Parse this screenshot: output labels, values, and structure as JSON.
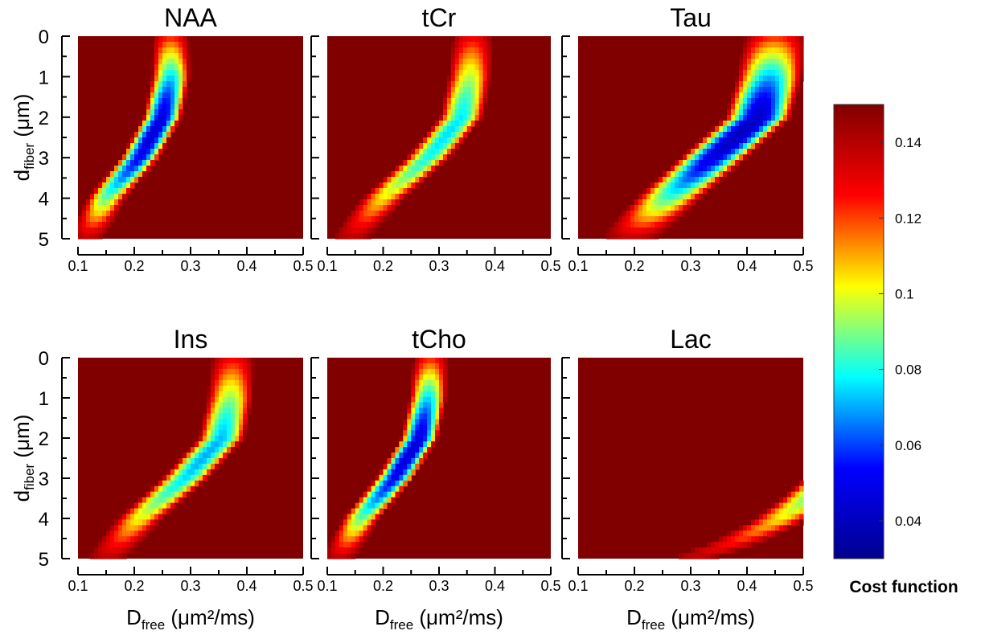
{
  "chart_data": [
    {
      "type": "heatmap",
      "title": "NAA",
      "xlabel": "",
      "ylabel": "dfiber (μm)",
      "x_ticks": [
        "0.1",
        "0.2",
        "0.3",
        "0.4",
        "0.5"
      ],
      "y_ticks": [
        "0",
        "1",
        "2",
        "3",
        "4",
        "5"
      ],
      "xlim": [
        0.1,
        0.5
      ],
      "ylim": [
        0,
        5
      ],
      "valley_path": [
        [
          0.265,
          0
        ],
        [
          0.265,
          1
        ],
        [
          0.25,
          2
        ],
        [
          0.21,
          3
        ],
        [
          0.15,
          4
        ],
        [
          0.115,
          5
        ]
      ],
      "valley_min": 0.045,
      "valley_width": 0.035
    },
    {
      "type": "heatmap",
      "title": "tCr",
      "xlabel": "",
      "ylabel": "",
      "x_ticks": [
        "0.1",
        "0.2",
        "0.3",
        "0.4",
        "0.5"
      ],
      "y_ticks": [],
      "xlim": [
        0.1,
        0.5
      ],
      "ylim": [
        0,
        5
      ],
      "valley_path": [
        [
          0.36,
          0
        ],
        [
          0.355,
          1
        ],
        [
          0.34,
          2
        ],
        [
          0.28,
          3
        ],
        [
          0.2,
          4
        ],
        [
          0.14,
          5
        ]
      ],
      "valley_min": 0.075,
      "valley_width": 0.04
    },
    {
      "type": "heatmap",
      "title": "Tau",
      "xlabel": "",
      "ylabel": "",
      "x_ticks": [
        "0.1",
        "0.2",
        "0.3",
        "0.4",
        "0.5"
      ],
      "y_ticks": [],
      "xlim": [
        0.1,
        0.5
      ],
      "ylim": [
        0,
        5
      ],
      "valley_path": [
        [
          0.45,
          0
        ],
        [
          0.44,
          1
        ],
        [
          0.42,
          2
        ],
        [
          0.34,
          3
        ],
        [
          0.26,
          4
        ],
        [
          0.19,
          5
        ]
      ],
      "valley_min": 0.04,
      "valley_width": 0.06
    },
    {
      "type": "heatmap",
      "title": "Ins",
      "xlabel": "Dfree (μm²/ms)",
      "ylabel": "dfiber (μm)",
      "x_ticks": [
        "0.1",
        "0.2",
        "0.3",
        "0.4",
        "0.5"
      ],
      "y_ticks": [
        "0",
        "1",
        "2",
        "3",
        "4",
        "5"
      ],
      "xlim": [
        0.1,
        0.5
      ],
      "ylim": [
        0,
        5
      ],
      "valley_path": [
        [
          0.375,
          0
        ],
        [
          0.37,
          1
        ],
        [
          0.355,
          2
        ],
        [
          0.29,
          3
        ],
        [
          0.21,
          4
        ],
        [
          0.15,
          5
        ]
      ],
      "valley_min": 0.07,
      "valley_width": 0.042
    },
    {
      "type": "heatmap",
      "title": "tCho",
      "xlabel": "Dfree (μm²/ms)",
      "ylabel": "",
      "x_ticks": [
        "0.1",
        "0.2",
        "0.3",
        "0.4",
        "0.5"
      ],
      "y_ticks": [],
      "xlim": [
        0.1,
        0.5
      ],
      "ylim": [
        0,
        5
      ],
      "valley_path": [
        [
          0.285,
          0
        ],
        [
          0.28,
          1
        ],
        [
          0.265,
          2
        ],
        [
          0.22,
          3
        ],
        [
          0.16,
          4
        ],
        [
          0.12,
          5
        ]
      ],
      "valley_min": 0.045,
      "valley_width": 0.034
    },
    {
      "type": "heatmap",
      "title": "Lac",
      "xlabel": "Dfree (μm²/ms)",
      "ylabel": "",
      "x_ticks": [
        "0.1",
        "0.2",
        "0.3",
        "0.4",
        "0.5"
      ],
      "y_ticks": [],
      "xlim": [
        0.1,
        0.5
      ],
      "ylim": [
        0,
        5
      ],
      "valley_path": [
        [
          0.55,
          3.0
        ],
        [
          0.5,
          3.6
        ],
        [
          0.45,
          4.1
        ],
        [
          0.38,
          4.6
        ],
        [
          0.3,
          5.0
        ]
      ],
      "valley_min": 0.075,
      "valley_width": 0.05
    }
  ],
  "colorbar": {
    "label": "Cost function",
    "ticks": [
      "0.04",
      "0.06",
      "0.08",
      "0.1",
      "0.12",
      "0.14"
    ],
    "range": [
      0.03,
      0.15
    ],
    "colormap": [
      "#00008f",
      "#0000ff",
      "#00ffff",
      "#ffff00",
      "#ff0000",
      "#800000"
    ]
  },
  "axis_labels": {
    "y_main": "d",
    "y_sub": "fiber",
    "y_unit": " (μm)",
    "x_main": "D",
    "x_sub": "free",
    "x_unit": " (μm²/ms)"
  },
  "colors": {
    "background_max": "#800000"
  }
}
